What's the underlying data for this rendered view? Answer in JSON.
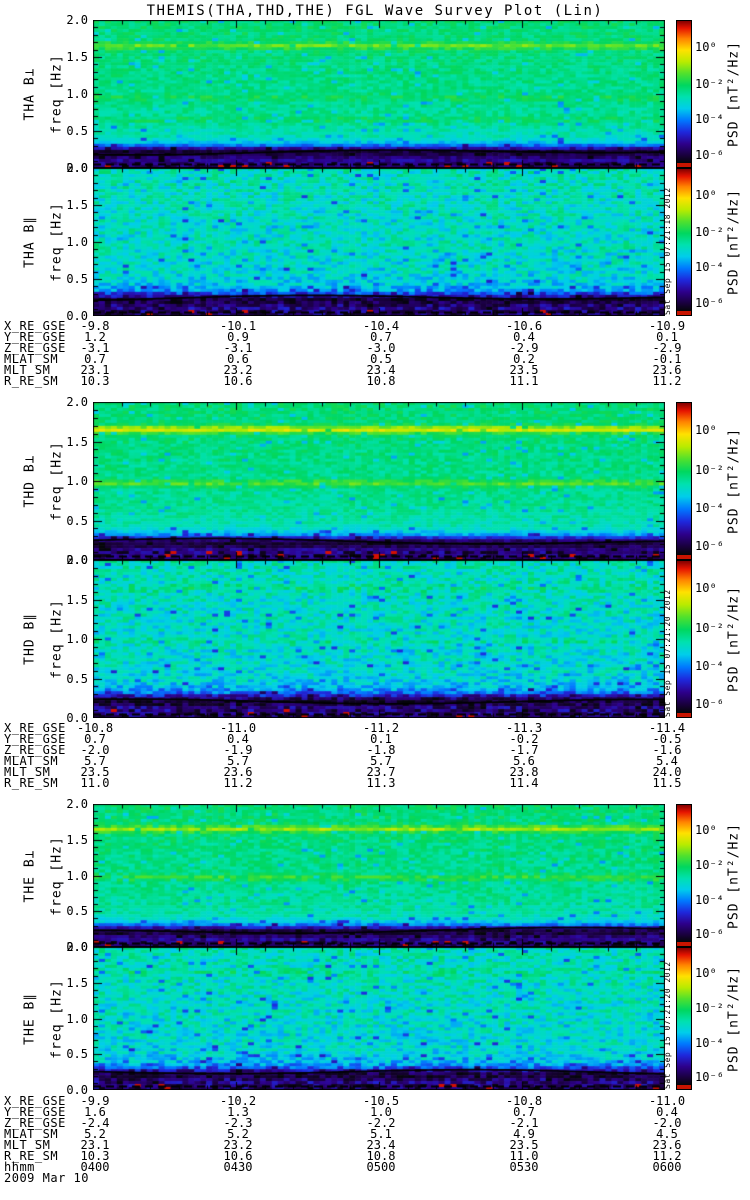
{
  "title": "THEMIS(THA,THD,THE) FGL Wave Survey Plot (Lin)",
  "date_line": "2009 Mar 10",
  "axis": {
    "freq_label": "freq [Hz]",
    "y_ticks": [
      "2.0",
      "1.5",
      "1.0",
      "0.5",
      "0.0"
    ]
  },
  "colorbar": {
    "label": "PSD [nT²/Hz]",
    "ticks": [
      "10⁰",
      "10⁻²",
      "10⁻⁴",
      "10⁻⁶"
    ]
  },
  "groups": [
    {
      "satellite": "THA",
      "timestamp": "Sat Sep 15 07:21:18 2012",
      "panel_labels": [
        "THA B⊥",
        "THA B∥"
      ],
      "ephemeris": [
        {
          "label": "X_RE_GSE",
          "values": [
            "-9.8",
            "-10.1",
            "-10.4",
            "-10.6",
            "-10.9"
          ]
        },
        {
          "label": "Y_RE_GSE",
          "values": [
            "1.2",
            "0.9",
            "0.7",
            "0.4",
            "0.1"
          ]
        },
        {
          "label": "Z_RE_GSE",
          "values": [
            "-3.1",
            "-3.1",
            "-3.0",
            "-2.9",
            "-2.9"
          ]
        },
        {
          "label": "MLAT_SM",
          "values": [
            "0.7",
            "0.6",
            "0.5",
            "0.2",
            "-0.1"
          ]
        },
        {
          "label": "MLT_SM",
          "values": [
            "23.1",
            "23.2",
            "23.4",
            "23.5",
            "23.6"
          ]
        },
        {
          "label": "R_RE_SM",
          "values": [
            "10.3",
            "10.6",
            "10.8",
            "11.1",
            "11.2"
          ]
        }
      ]
    },
    {
      "satellite": "THD",
      "timestamp": "Sat Sep 15 07:21:20 2012",
      "panel_labels": [
        "THD B⊥",
        "THD B∥"
      ],
      "ephemeris": [
        {
          "label": "X_RE_GSE",
          "values": [
            "-10.8",
            "-11.0",
            "-11.2",
            "-11.3",
            "-11.4"
          ]
        },
        {
          "label": "Y_RE_GSE",
          "values": [
            "0.7",
            "0.4",
            "0.1",
            "-0.2",
            "-0.5"
          ]
        },
        {
          "label": "Z_RE_GSE",
          "values": [
            "-2.0",
            "-1.9",
            "-1.8",
            "-1.7",
            "-1.6"
          ]
        },
        {
          "label": "MLAT_SM",
          "values": [
            "5.7",
            "5.7",
            "5.7",
            "5.6",
            "5.4"
          ]
        },
        {
          "label": "MLT_SM",
          "values": [
            "23.5",
            "23.6",
            "23.7",
            "23.8",
            "24.0"
          ]
        },
        {
          "label": "R_RE_SM",
          "values": [
            "11.0",
            "11.2",
            "11.3",
            "11.4",
            "11.5"
          ]
        }
      ]
    },
    {
      "satellite": "THE",
      "timestamp": "Sat Sep 15 07:21:20 2012",
      "panel_labels": [
        "THE B⊥",
        "THE B∥"
      ],
      "ephemeris": [
        {
          "label": "X_RE_GSE",
          "values": [
            "-9.9",
            "-10.2",
            "-10.5",
            "-10.8",
            "-11.0"
          ]
        },
        {
          "label": "Y_RE_GSE",
          "values": [
            "1.6",
            "1.3",
            "1.0",
            "0.7",
            "0.4"
          ]
        },
        {
          "label": "Z_RE_GSE",
          "values": [
            "-2.4",
            "-2.3",
            "-2.2",
            "-2.1",
            "-2.0"
          ]
        },
        {
          "label": "MLAT_SM",
          "values": [
            "5.2",
            "5.2",
            "5.1",
            "4.9",
            "4.5"
          ]
        },
        {
          "label": "MLT_SM",
          "values": [
            "23.1",
            "23.2",
            "23.4",
            "23.5",
            "23.6"
          ]
        },
        {
          "label": "R_RE_SM",
          "values": [
            "10.3",
            "10.6",
            "10.8",
            "11.0",
            "11.2"
          ]
        },
        {
          "label": "hhmm",
          "values": [
            "0400",
            "0430",
            "0500",
            "0530",
            "0600"
          ]
        }
      ]
    }
  ],
  "chart_data": {
    "type": "heatmap",
    "subtype": "dynamic-power-spectrogram",
    "title": "THEMIS(THA,THD,THE) FGL Wave Survey Plot (Lin)",
    "x": {
      "label": "hhmm",
      "date": "2009 Mar 10",
      "ticks": [
        "0400",
        "0430",
        "0500",
        "0530",
        "0600"
      ]
    },
    "y": {
      "label": "freq [Hz]",
      "range": [
        0.0,
        2.0
      ],
      "ticks": [
        2.0,
        1.5,
        1.0,
        0.5,
        0.0
      ]
    },
    "colorbar": {
      "label": "PSD [nT²/Hz]",
      "scale": "log",
      "tick_labels": [
        "10⁰",
        "10⁻²",
        "10⁻⁴",
        "10⁻⁶"
      ]
    },
    "legend_position": "right",
    "grid": false,
    "panels": [
      {
        "satellite": "THA",
        "component": "B⊥",
        "profile": "green",
        "noise": 0.09,
        "lines": [
          {
            "f": 1.65,
            "amp": 0.12
          },
          {
            "f": 0.95,
            "amp": 0.05
          },
          {
            "f": 0.65,
            "amp": 0.05
          }
        ],
        "notes": "broadband green ~1e-3, dark PSD gap with black trace near 0.2 Hz"
      },
      {
        "satellite": "THA",
        "component": "B∥",
        "profile": "cyan",
        "noise": 0.16,
        "lines": [
          {
            "f": 0.95,
            "amp": 0.03
          }
        ],
        "notes": "speckled cyan-blue ~1e-4, dark gap near 0.2 Hz"
      },
      {
        "satellite": "THD",
        "component": "B⊥",
        "profile": "green",
        "noise": 0.09,
        "lines": [
          {
            "f": 1.65,
            "amp": 0.22
          },
          {
            "f": 0.97,
            "amp": 0.12
          }
        ],
        "notes": "bright yellow narrowband lines at 1.65 Hz and ~1.0 Hz"
      },
      {
        "satellite": "THD",
        "component": "B∥",
        "profile": "cyan",
        "noise": 0.16,
        "lines": [
          {
            "f": 1.65,
            "amp": 0.05
          },
          {
            "f": 0.97,
            "amp": 0.04
          }
        ],
        "notes": "speckled cyan-blue, faint lines"
      },
      {
        "satellite": "THE",
        "component": "B⊥",
        "profile": "green",
        "noise": 0.1,
        "lines": [
          {
            "f": 1.65,
            "amp": 0.17
          },
          {
            "f": 0.97,
            "amp": 0.09
          }
        ],
        "notes": "yellow-green narrowband lines at 1.65 Hz and ~1.0 Hz"
      },
      {
        "satellite": "THE",
        "component": "B∥",
        "profile": "cyan",
        "noise": 0.16,
        "lines": [
          {
            "f": 1.65,
            "amp": 0.04
          }
        ],
        "notes": "speckled cyan-blue, dark gap near 0.2 Hz"
      }
    ]
  }
}
